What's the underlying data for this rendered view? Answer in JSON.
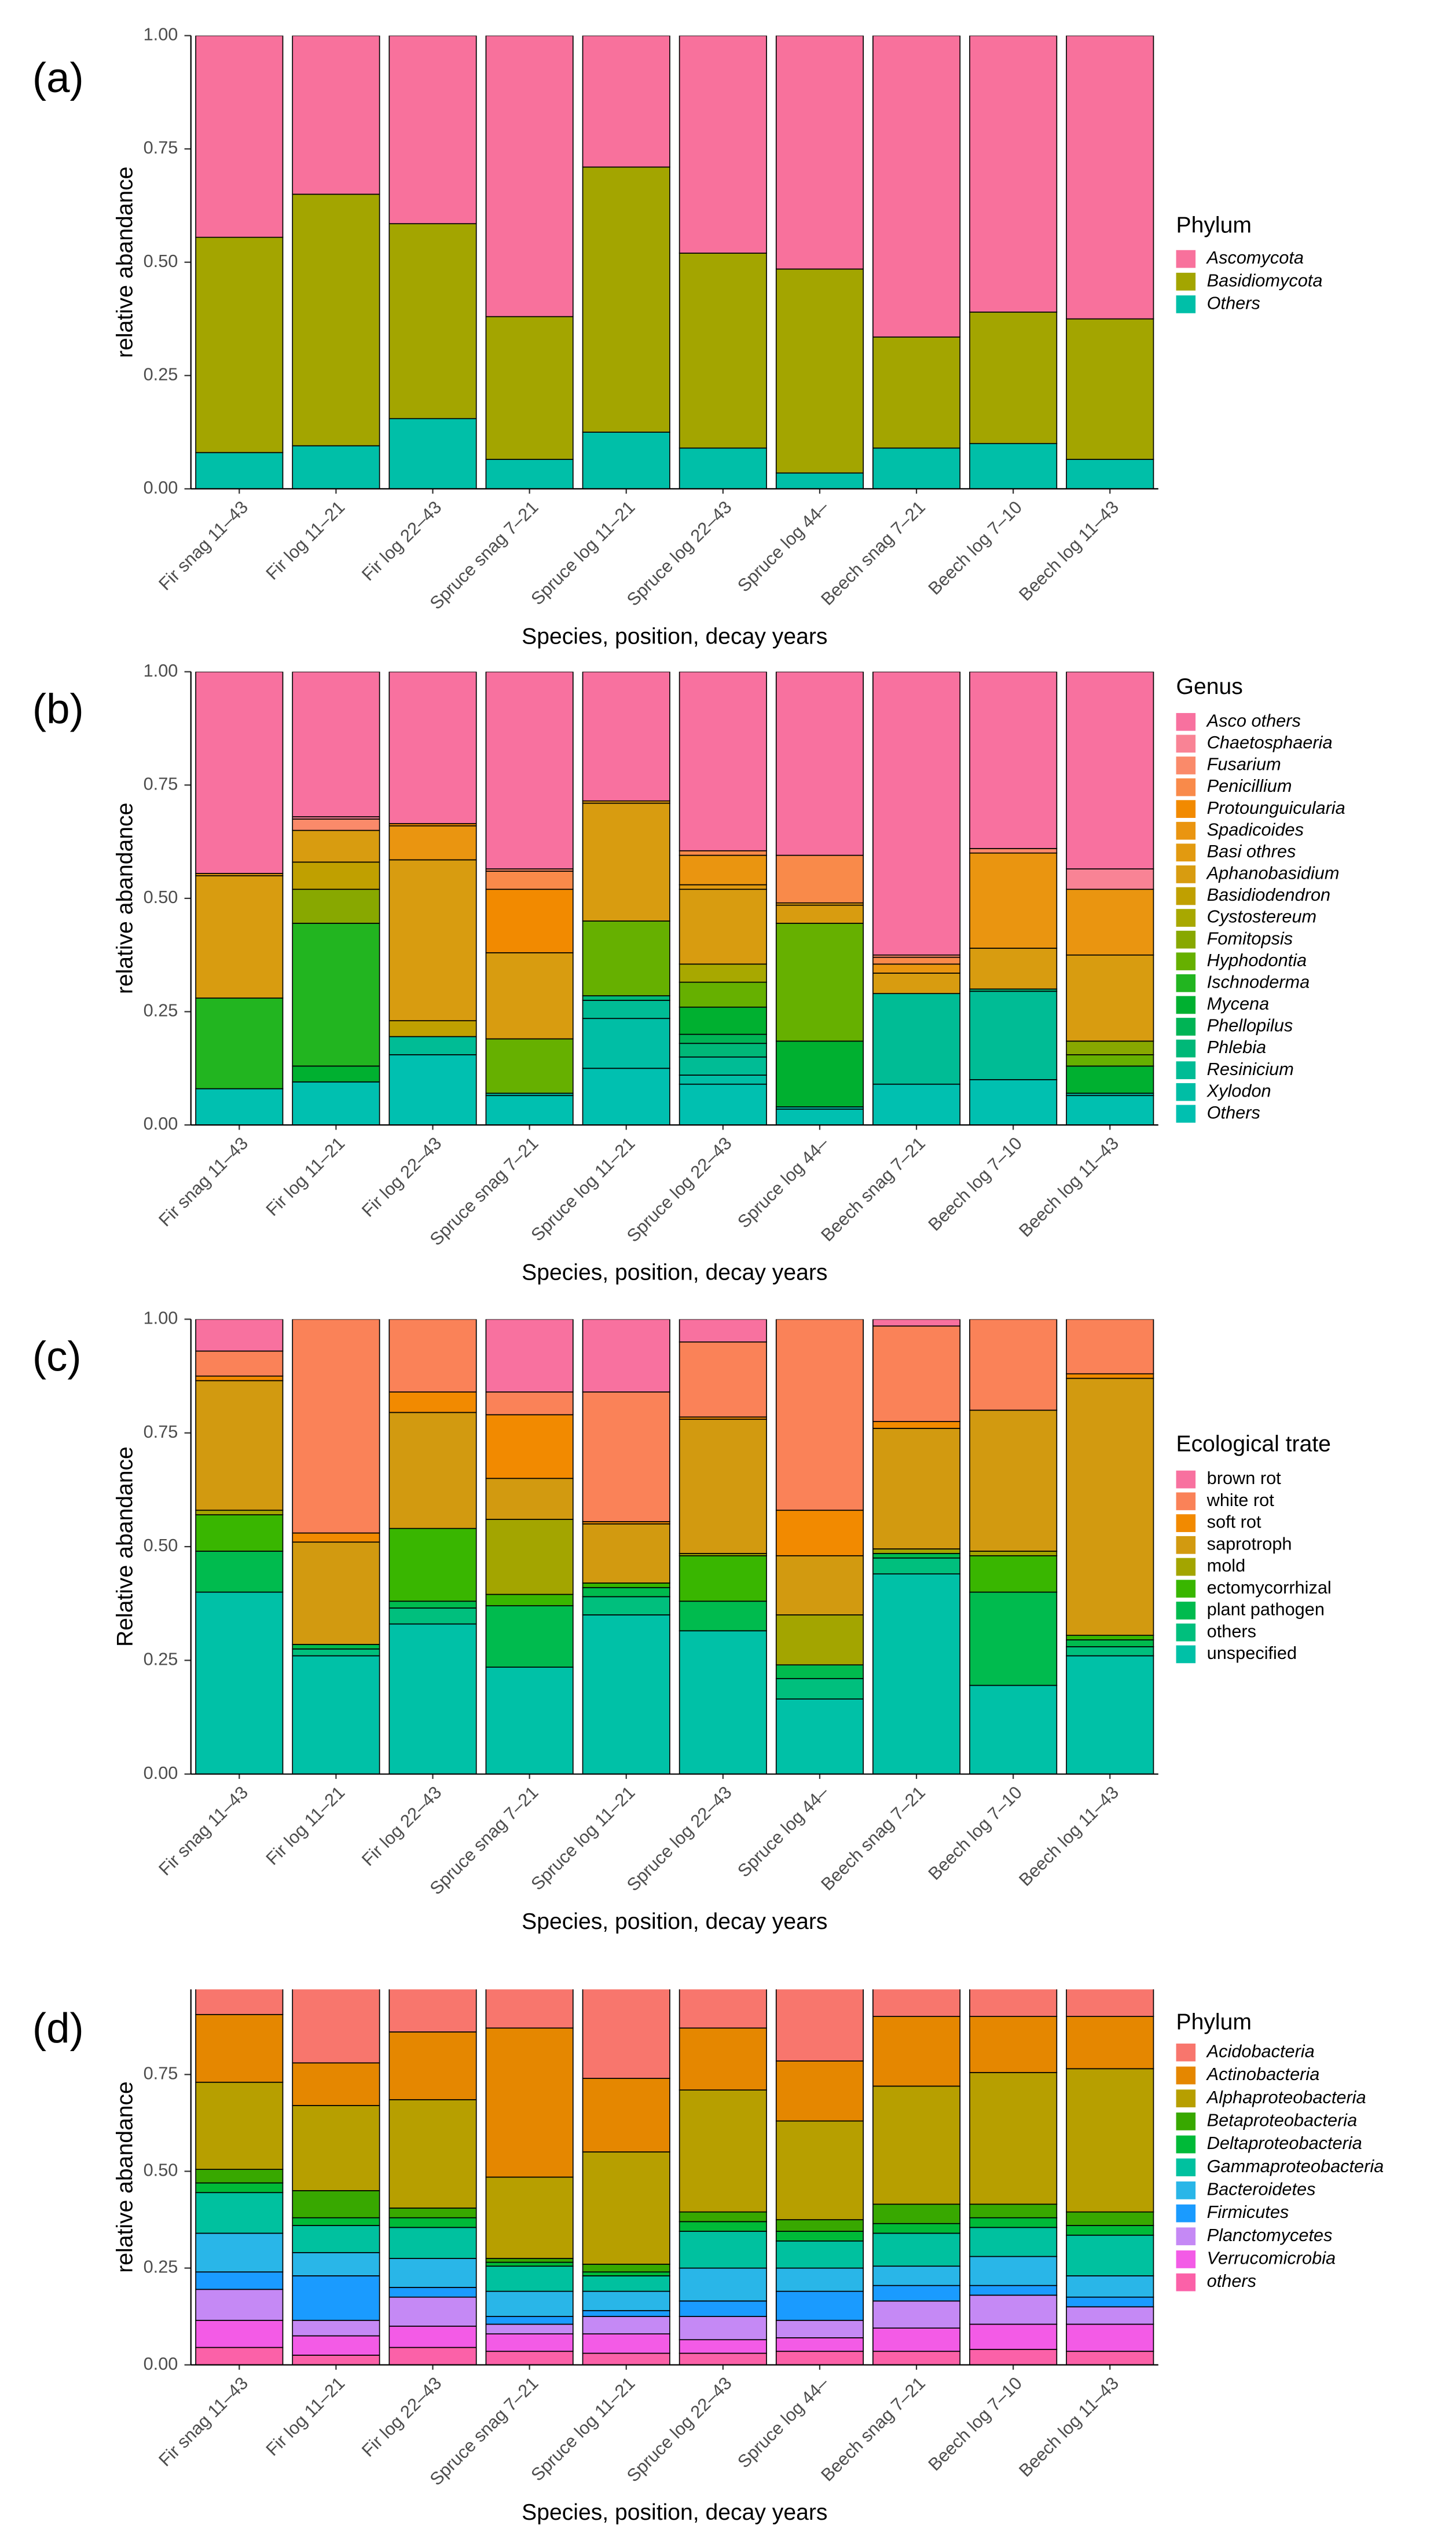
{
  "chart_data": [
    {
      "type": "bar",
      "panel": "(a)",
      "xlabel": "Species, position, decay years",
      "ylabel": "relative abandance",
      "legend_title": "Phylum",
      "categories": [
        "Fir snag 11–43",
        "Fir log 11–21",
        "Fir log 22–43",
        "Spruce snag 7–21",
        "Spruce log 11–21",
        "Spruce log 22–43",
        "Spruce log 44–",
        "Beech snag 7–21",
        "Beech log 7–10",
        "Beech log 11–43"
      ],
      "series": [
        {
          "name": "Ascomycota",
          "color": "#f8719c",
          "values": [
            0.445,
            0.35,
            0.415,
            0.62,
            0.29,
            0.48,
            0.515,
            0.665,
            0.61,
            0.625
          ]
        },
        {
          "name": "Basidiomycota",
          "color": "#a3a500",
          "values": [
            0.475,
            0.555,
            0.43,
            0.315,
            0.585,
            0.43,
            0.45,
            0.245,
            0.29,
            0.31
          ]
        },
        {
          "name": "Others",
          "color": "#00bfa8",
          "values": [
            0.08,
            0.095,
            0.155,
            0.065,
            0.125,
            0.09,
            0.035,
            0.09,
            0.1,
            0.065
          ]
        }
      ],
      "ylim": [
        0,
        1
      ],
      "yticks": [
        {
          "value": 0,
          "label": "0.00"
        },
        {
          "value": 0.25,
          "label": "0.25"
        },
        {
          "value": 0.5,
          "label": "0.50"
        },
        {
          "value": 0.75,
          "label": "0.75"
        },
        {
          "value": 1,
          "label": "1.00"
        }
      ]
    },
    {
      "type": "bar",
      "panel": "(b)",
      "xlabel": "Species, position, decay years",
      "ylabel": "relative abandance",
      "legend_title": "Genus",
      "categories": [
        "Fir snag 11–43",
        "Fir log 11–21",
        "Fir log 22–43",
        "Spruce snag 7–21",
        "Spruce log 11–21",
        "Spruce log 22–43",
        "Spruce log 44–",
        "Beech snag 7–21",
        "Beech log 7–10",
        "Beech log 11–43"
      ],
      "series": [
        {
          "name": "Asco others",
          "color": "#f8719f",
          "values": [
            0.445,
            0.32,
            0.335,
            0.435,
            0.285,
            0.395,
            0.405,
            0.625,
            0.39,
            0.435
          ]
        },
        {
          "name": "Chaetosphaeria",
          "color": "#f98395",
          "values": [
            0,
            0.005,
            0,
            0,
            0,
            0,
            0,
            0,
            0,
            0.045
          ]
        },
        {
          "name": "Fusarium",
          "color": "#fa8a6a",
          "values": [
            0,
            0.025,
            0,
            0.005,
            0,
            0,
            0,
            0.005,
            0.01,
            0
          ]
        },
        {
          "name": "Penicillium",
          "color": "#f98a4a",
          "values": [
            0,
            0,
            0,
            0.04,
            0,
            0.01,
            0.105,
            0.015,
            0,
            0
          ]
        },
        {
          "name": "Protounguicularia",
          "color": "#f28a00",
          "values": [
            0,
            0,
            0.005,
            0.14,
            0,
            0,
            0,
            0,
            0,
            0
          ]
        },
        {
          "name": "Spadicoides",
          "color": "#ea9510",
          "values": [
            0,
            0,
            0.075,
            0,
            0,
            0.065,
            0,
            0.02,
            0.21,
            0.145
          ]
        },
        {
          "name": "Basi othres",
          "color": "#e29a10",
          "values": [
            0.005,
            0,
            0,
            0,
            0.005,
            0.01,
            0.005,
            0,
            0,
            0
          ]
        },
        {
          "name": "Aphanobasidium",
          "color": "#d89c10",
          "values": [
            0.27,
            0.07,
            0.355,
            0.19,
            0.26,
            0.165,
            0.04,
            0.045,
            0.09,
            0.19
          ]
        },
        {
          "name": "Basidiodendron",
          "color": "#c0a000",
          "values": [
            0,
            0.06,
            0.035,
            0,
            0,
            0,
            0,
            0,
            0,
            0
          ]
        },
        {
          "name": "Cystostereum",
          "color": "#a8a800",
          "values": [
            0,
            0,
            0,
            0,
            0,
            0.04,
            0,
            0,
            0,
            0
          ]
        },
        {
          "name": "Fomitopsis",
          "color": "#88a800",
          "values": [
            0,
            0.075,
            0,
            0,
            0,
            0,
            0,
            0,
            0,
            0.03
          ]
        },
        {
          "name": "Hyphodontia",
          "color": "#66b000",
          "values": [
            0,
            0,
            0,
            0.12,
            0.165,
            0.055,
            0.26,
            0,
            0,
            0.025
          ]
        },
        {
          "name": "Ischnoderma",
          "color": "#22b520",
          "values": [
            0.2,
            0.315,
            0,
            0,
            0,
            0,
            0,
            0,
            0,
            0
          ]
        },
        {
          "name": "Mycena",
          "color": "#00b030",
          "values": [
            0,
            0.035,
            0,
            0,
            0,
            0.06,
            0.145,
            0,
            0,
            0.06
          ]
        },
        {
          "name": "Phellopilus",
          "color": "#00b455",
          "values": [
            0,
            0,
            0,
            0,
            0,
            0.02,
            0,
            0,
            0,
            0
          ]
        },
        {
          "name": "Phlebia",
          "color": "#00b878",
          "values": [
            0,
            0,
            0,
            0,
            0.01,
            0.03,
            0,
            0,
            0.005,
            0
          ]
        },
        {
          "name": "Resinicium",
          "color": "#00bc95",
          "values": [
            0,
            0,
            0.04,
            0,
            0.04,
            0.04,
            0,
            0.2,
            0.195,
            0
          ]
        },
        {
          "name": "Xylodon",
          "color": "#00bea5",
          "values": [
            0,
            0,
            0,
            0.005,
            0.11,
            0.02,
            0.005,
            0,
            0,
            0.005
          ]
        },
        {
          "name": "Others",
          "color": "#00c0b0",
          "values": [
            0.08,
            0.095,
            0.155,
            0.065,
            0.125,
            0.09,
            0.035,
            0.09,
            0.1,
            0.065
          ]
        }
      ],
      "ylim": [
        0,
        1
      ],
      "yticks": [
        {
          "value": 0,
          "label": "0.00"
        },
        {
          "value": 0.25,
          "label": "0.25"
        },
        {
          "value": 0.5,
          "label": "0.50"
        },
        {
          "value": 0.75,
          "label": "0.75"
        },
        {
          "value": 1,
          "label": "1.00"
        }
      ]
    },
    {
      "type": "bar",
      "panel": "(c)",
      "xlabel": "Species, position, decay years",
      "ylabel": "Relative abandance",
      "legend_title": "Ecological trate",
      "categories": [
        "Fir snag 11–43",
        "Fir log 11–21",
        "Fir log 22–43",
        "Spruce snag 7–21",
        "Spruce log 11–21",
        "Spruce log 22–43",
        "Spruce log 44–",
        "Beech snag 7–21",
        "Beech log 7–10",
        "Beech log 11–43"
      ],
      "series": [
        {
          "name": "brown rot",
          "color": "#f8719f",
          "values": [
            0.07,
            0,
            0,
            0.16,
            0.16,
            0.05,
            0,
            0.015,
            0,
            0
          ]
        },
        {
          "name": "white rot",
          "color": "#fa8258",
          "values": [
            0.055,
            0.47,
            0.16,
            0.05,
            0.285,
            0.165,
            0.42,
            0.21,
            0.2,
            0.12
          ]
        },
        {
          "name": "soft rot",
          "color": "#f28a00",
          "values": [
            0.01,
            0.02,
            0.045,
            0.14,
            0.005,
            0.005,
            0.1,
            0.015,
            0,
            0.01
          ]
        },
        {
          "name": "saprotroph",
          "color": "#d29a10",
          "values": [
            0.285,
            0.225,
            0.255,
            0.09,
            0.13,
            0.295,
            0.13,
            0.265,
            0.31,
            0.565
          ]
        },
        {
          "name": "mold",
          "color": "#a3a500",
          "values": [
            0.01,
            0,
            0,
            0.165,
            0,
            0.005,
            0.11,
            0.01,
            0.01,
            0
          ]
        },
        {
          "name": "ectomycorrhizal",
          "color": "#39b600",
          "values": [
            0.08,
            0,
            0.16,
            0.025,
            0.01,
            0.1,
            0,
            0,
            0.08,
            0.01
          ]
        },
        {
          "name": "plant pathogen",
          "color": "#00bb4e",
          "values": [
            0.09,
            0.01,
            0.015,
            0.135,
            0.02,
            0.065,
            0.03,
            0.01,
            0.205,
            0.015
          ]
        },
        {
          "name": "others",
          "color": "#00bf7d",
          "values": [
            0,
            0.015,
            0.035,
            0,
            0.04,
            0,
            0.045,
            0.035,
            0,
            0.02
          ]
        },
        {
          "name": "unspecified",
          "color": "#00c1a7",
          "values": [
            0.4,
            0.26,
            0.33,
            0.235,
            0.35,
            0.315,
            0.165,
            0.44,
            0.195,
            0.26
          ]
        }
      ],
      "ylim": [
        0,
        1
      ],
      "yticks": [
        {
          "value": 0,
          "label": "0.00"
        },
        {
          "value": 0.25,
          "label": "0.25"
        },
        {
          "value": 0.5,
          "label": "0.50"
        },
        {
          "value": 0.75,
          "label": "0.75"
        },
        {
          "value": 1,
          "label": "1.00"
        }
      ]
    },
    {
      "type": "bar",
      "panel": "(d)",
      "xlabel": "Species, position, decay years",
      "ylabel": "relative abandance",
      "legend_title": "Phylum",
      "categories": [
        "Fir snag 11–43",
        "Fir log 11–21",
        "Fir log 22–43",
        "Spruce snag 7–21",
        "Spruce log 11–21",
        "Spruce log 22–43",
        "Spruce log 44–",
        "Beech snag 7–21",
        "Beech log 7–10",
        "Beech log 11–43"
      ],
      "series": [
        {
          "name": "Acidobacteria",
          "color": "#f8766d",
          "values": [
            0.095,
            0.22,
            0.14,
            0.13,
            0.26,
            0.13,
            0.215,
            0.1,
            0.1,
            0.1
          ]
        },
        {
          "name": "Actinobacteria",
          "color": "#e58700",
          "values": [
            0.175,
            0.11,
            0.175,
            0.385,
            0.19,
            0.16,
            0.155,
            0.18,
            0.145,
            0.135
          ]
        },
        {
          "name": "Alphaproteobacteria",
          "color": "#b79f00",
          "values": [
            0.225,
            0.22,
            0.28,
            0.21,
            0.29,
            0.315,
            0.255,
            0.305,
            0.34,
            0.37
          ]
        },
        {
          "name": "Betaproteobacteria",
          "color": "#38a800",
          "values": [
            0.035,
            0.07,
            0.025,
            0.01,
            0.02,
            0.025,
            0.03,
            0.05,
            0.035,
            0.035
          ]
        },
        {
          "name": "Deltaproteobacteria",
          "color": "#00ba38",
          "values": [
            0.025,
            0.02,
            0.025,
            0.01,
            0.01,
            0.025,
            0.025,
            0.025,
            0.025,
            0.025
          ]
        },
        {
          "name": "Gammaproteobacteria",
          "color": "#00c19f",
          "values": [
            0.105,
            0.07,
            0.08,
            0.065,
            0.04,
            0.095,
            0.07,
            0.085,
            0.075,
            0.105
          ]
        },
        {
          "name": "Bacteroidetes",
          "color": "#29b6e8",
          "values": [
            0.1,
            0.06,
            0.075,
            0.065,
            0.05,
            0.085,
            0.06,
            0.05,
            0.075,
            0.055
          ]
        },
        {
          "name": "Firmicutes",
          "color": "#1a9bff",
          "values": [
            0.045,
            0.115,
            0.025,
            0.02,
            0.015,
            0.04,
            0.075,
            0.04,
            0.025,
            0.025
          ]
        },
        {
          "name": "Planctomycetes",
          "color": "#c589f5",
          "values": [
            0.08,
            0.04,
            0.075,
            0.025,
            0.045,
            0.06,
            0.045,
            0.07,
            0.075,
            0.045
          ]
        },
        {
          "name": "Verrucomicrobia",
          "color": "#f35be6",
          "values": [
            0.07,
            0.05,
            0.055,
            0.045,
            0.05,
            0.035,
            0.035,
            0.06,
            0.065,
            0.07
          ]
        },
        {
          "name": "others",
          "color": "#fb61a8",
          "values": [
            0.045,
            0.025,
            0.045,
            0.035,
            0.03,
            0.03,
            0.035,
            0.035,
            0.04,
            0.035
          ]
        }
      ],
      "ylim": [
        0,
        0.97
      ],
      "yticks": [
        {
          "value": 0,
          "label": "0.00"
        },
        {
          "value": 0.25,
          "label": "0.25"
        },
        {
          "value": 0.5,
          "label": "0.50"
        },
        {
          "value": 0.75,
          "label": "0.75"
        }
      ]
    }
  ]
}
